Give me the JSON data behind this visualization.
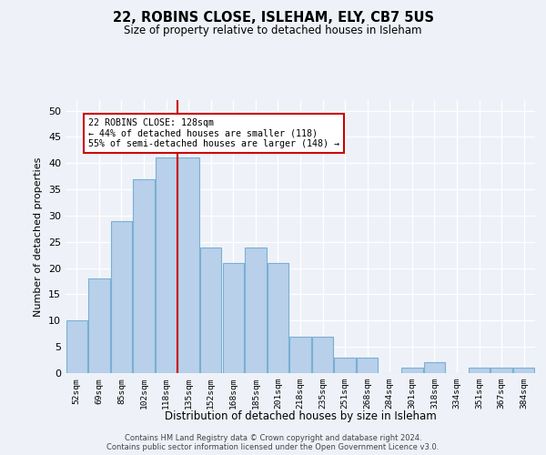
{
  "title_line1": "22, ROBINS CLOSE, ISLEHAM, ELY, CB7 5US",
  "title_line2": "Size of property relative to detached houses in Isleham",
  "xlabel": "Distribution of detached houses by size in Isleham",
  "ylabel": "Number of detached properties",
  "categories": [
    "52sqm",
    "69sqm",
    "85sqm",
    "102sqm",
    "118sqm",
    "135sqm",
    "152sqm",
    "168sqm",
    "185sqm",
    "201sqm",
    "218sqm",
    "235sqm",
    "251sqm",
    "268sqm",
    "284sqm",
    "301sqm",
    "318sqm",
    "334sqm",
    "351sqm",
    "367sqm",
    "384sqm"
  ],
  "values": [
    10,
    18,
    29,
    37,
    41,
    41,
    24,
    21,
    24,
    21,
    7,
    7,
    3,
    3,
    0,
    1,
    2,
    0,
    1,
    1,
    1
  ],
  "bar_color": "#b8d0ea",
  "bar_edge_color": "#7aafd4",
  "vline_color": "#cc0000",
  "vline_position": 4.5,
  "annotation_box_color": "#ffffff",
  "annotation_box_edge": "#cc0000",
  "annotation_line1": "22 ROBINS CLOSE: 128sqm",
  "annotation_line2": "← 44% of detached houses are smaller (118)",
  "annotation_line3": "55% of semi-detached houses are larger (148) →",
  "ylim": [
    0,
    52
  ],
  "yticks": [
    0,
    5,
    10,
    15,
    20,
    25,
    30,
    35,
    40,
    45,
    50
  ],
  "background_color": "#eef2f8",
  "grid_color": "#ffffff",
  "footnote_line1": "Contains HM Land Registry data © Crown copyright and database right 2024.",
  "footnote_line2": "Contains public sector information licensed under the Open Government Licence v3.0."
}
